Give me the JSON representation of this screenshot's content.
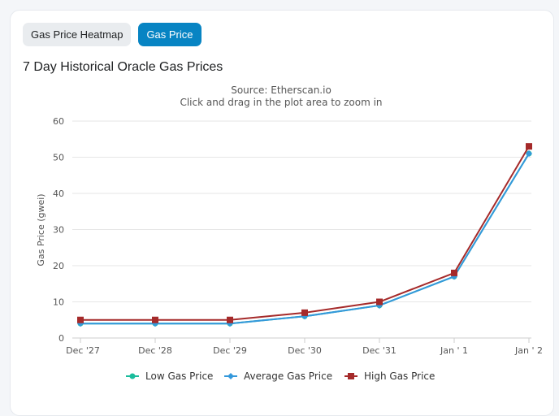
{
  "tabs": [
    {
      "label": "Gas Price Heatmap",
      "active": false
    },
    {
      "label": "Gas Price",
      "active": true
    }
  ],
  "section_title": "7 Day Historical Oracle Gas Prices",
  "chart_data": {
    "type": "line",
    "title": "Source: Etherscan.io",
    "subtitle": "Click and drag in the plot area to zoom in",
    "ylabel": "Gas Price (gwei)",
    "xlabel": "",
    "categories": [
      "Dec '27",
      "Dec '28",
      "Dec '29",
      "Dec '30",
      "Dec '31",
      "Jan ' 1",
      "Jan ' 2"
    ],
    "ylim": [
      0,
      60
    ],
    "yticks": [
      0,
      10,
      20,
      30,
      40,
      50,
      60
    ],
    "grid": true,
    "legend_placement": "bottom-center",
    "series": [
      {
        "name": "Low Gas Price",
        "color": "#1abc9c",
        "marker": "circle",
        "values": [
          4,
          4,
          4,
          6,
          9,
          17,
          51
        ]
      },
      {
        "name": "Average Gas Price",
        "color": "#3498db",
        "marker": "diamond",
        "values": [
          4,
          4,
          4,
          6,
          9,
          17,
          51
        ]
      },
      {
        "name": "High Gas Price",
        "color": "#a52a2a",
        "marker": "square",
        "values": [
          5,
          5,
          5,
          7,
          10,
          18,
          53
        ]
      }
    ]
  }
}
